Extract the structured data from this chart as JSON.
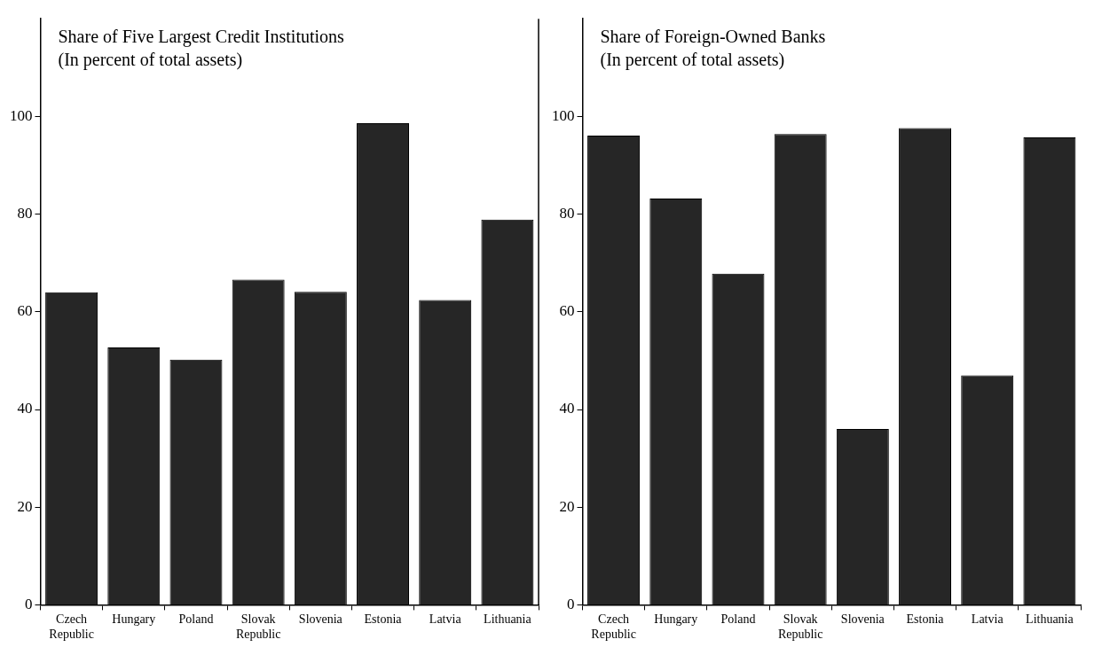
{
  "chart_data": [
    {
      "type": "bar",
      "title": "Share of Five Largest Credit Institutions",
      "subtitle": "(In percent of total assets)",
      "categories": [
        "Czech Republic",
        "Hungary",
        "Poland",
        "Slovak Republic",
        "Slovenia",
        "Estonia",
        "Latvia",
        "Lithuania"
      ],
      "values": [
        64.0,
        52.7,
        50.2,
        66.6,
        64.1,
        98.6,
        62.4,
        78.9
      ],
      "color": "#262626",
      "ylim": [
        0,
        120
      ],
      "yticks": [
        0,
        20,
        40,
        60,
        80,
        100
      ],
      "grid": false,
      "legend": false
    },
    {
      "type": "bar",
      "title": "Share of Foreign-Owned Banks",
      "subtitle": "(In percent of total assets)",
      "categories": [
        "Czech Republic",
        "Hungary",
        "Poland",
        "Slovak Republic",
        "Slovenia",
        "Estonia",
        "Latvia",
        "Lithuania"
      ],
      "values": [
        96.1,
        83.2,
        67.8,
        96.4,
        36.0,
        97.6,
        47.0,
        95.7
      ],
      "color": "#262626",
      "ylim": [
        0,
        120
      ],
      "yticks": [
        0,
        20,
        40,
        60,
        80,
        100
      ],
      "grid": false,
      "legend": false
    }
  ]
}
